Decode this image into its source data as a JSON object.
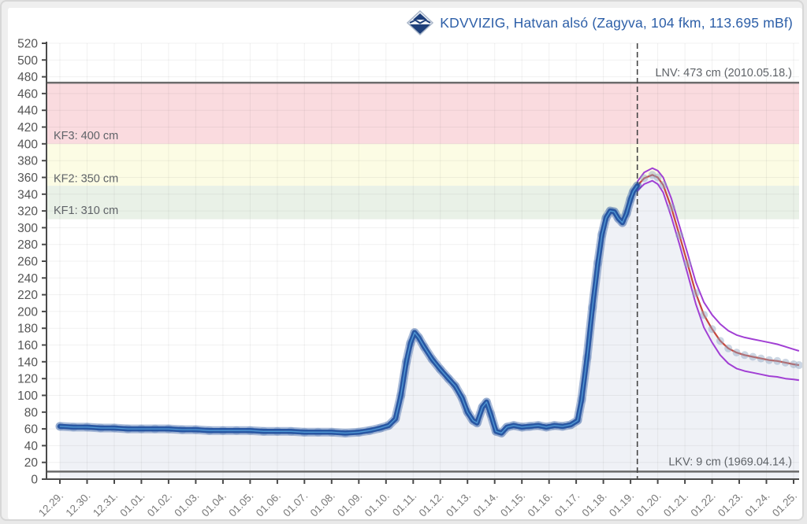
{
  "header": {
    "title": "KDVVIZIG, Hatvan alsó (Zagyva, 104 fkm, 113.695 mBf)",
    "logo_icon": "kdvvizig-diamond-logo"
  },
  "chart_data": {
    "type": "line",
    "title": "KDVVIZIG, Hatvan alsó (Zagyva, 104 fkm, 113.695 mBf)",
    "ylabel": "water level (cm)",
    "unit": "cm",
    "ylim": [
      0,
      520
    ],
    "y_ticks": [
      0,
      20,
      40,
      60,
      80,
      100,
      120,
      140,
      160,
      180,
      200,
      220,
      240,
      260,
      280,
      300,
      320,
      340,
      360,
      380,
      400,
      420,
      440,
      460,
      480,
      500,
      520
    ],
    "x_unit": "day_index_fractional",
    "x_labels": [
      "12.29.",
      "12.30.",
      "12.31.",
      "01.01.",
      "01.02.",
      "01.03.",
      "01.04.",
      "01.05.",
      "01.06.",
      "01.07.",
      "01.08.",
      "01.09.",
      "01.10.",
      "01.11.",
      "01.12.",
      "01.13.",
      "01.14.",
      "01.15.",
      "01.16.",
      "01.17.",
      "01.18.",
      "01.19.",
      "01.20.",
      "01.21.",
      "01.22.",
      "01.23.",
      "01.24.",
      "01.25."
    ],
    "grid": true,
    "legend_position": "none",
    "forecast_start_day": 21.25,
    "bands": [
      {
        "name": "KF3",
        "label": "KF3: 400 cm",
        "from": 400,
        "to": 473,
        "color": "#fadbdf",
        "label_value": 410
      },
      {
        "name": "KF2",
        "label": "KF2: 350 cm",
        "from": 350,
        "to": 400,
        "color": "#fcfce4",
        "label_value": 359
      },
      {
        "name": "KF1",
        "label": "KF1: 310 cm",
        "from": 310,
        "to": 350,
        "color": "#e9f1e7",
        "label_value": 321
      }
    ],
    "extremes": [
      {
        "name": "LNV",
        "label": "LNV: 473 cm (2010.05.18.)",
        "value": 473
      },
      {
        "name": "LKV",
        "label": "LKV: 9 cm (1969.04.14.)",
        "value": 9
      }
    ],
    "series": [
      {
        "name": "measured",
        "style": "thick-navy",
        "points": [
          [
            0,
            63
          ],
          [
            0.5,
            62
          ],
          [
            1,
            62
          ],
          [
            1.5,
            61
          ],
          [
            2,
            61
          ],
          [
            2.5,
            60
          ],
          [
            3,
            60
          ],
          [
            3.5,
            60
          ],
          [
            4,
            60
          ],
          [
            4.5,
            59
          ],
          [
            5,
            59
          ],
          [
            5.5,
            58
          ],
          [
            6,
            58
          ],
          [
            6.5,
            58
          ],
          [
            7,
            58
          ],
          [
            7.5,
            57
          ],
          [
            8,
            57
          ],
          [
            8.5,
            57
          ],
          [
            9,
            56
          ],
          [
            9.5,
            56
          ],
          [
            10,
            56
          ],
          [
            10.5,
            55
          ],
          [
            11,
            56
          ],
          [
            11.4,
            58
          ],
          [
            11.8,
            61
          ],
          [
            12.1,
            64
          ],
          [
            12.35,
            72
          ],
          [
            12.55,
            100
          ],
          [
            12.75,
            140
          ],
          [
            12.9,
            162
          ],
          [
            13.05,
            175
          ],
          [
            13.2,
            169
          ],
          [
            13.4,
            158
          ],
          [
            13.7,
            143
          ],
          [
            14,
            131
          ],
          [
            14.3,
            120
          ],
          [
            14.55,
            111
          ],
          [
            14.8,
            97
          ],
          [
            15,
            80
          ],
          [
            15.2,
            70
          ],
          [
            15.35,
            67
          ],
          [
            15.55,
            86
          ],
          [
            15.7,
            92
          ],
          [
            15.85,
            78
          ],
          [
            16.05,
            57
          ],
          [
            16.25,
            55
          ],
          [
            16.45,
            62
          ],
          [
            16.7,
            64
          ],
          [
            17,
            62
          ],
          [
            17.3,
            63
          ],
          [
            17.6,
            64
          ],
          [
            17.9,
            62
          ],
          [
            18.2,
            64
          ],
          [
            18.5,
            63
          ],
          [
            18.8,
            65
          ],
          [
            19.05,
            70
          ],
          [
            19.2,
            95
          ],
          [
            19.4,
            145
          ],
          [
            19.6,
            205
          ],
          [
            19.8,
            258
          ],
          [
            19.95,
            292
          ],
          [
            20.1,
            312
          ],
          [
            20.25,
            320
          ],
          [
            20.4,
            319
          ],
          [
            20.55,
            311
          ],
          [
            20.7,
            306
          ],
          [
            20.85,
            317
          ],
          [
            21,
            334
          ],
          [
            21.1,
            343
          ],
          [
            21.25,
            350
          ]
        ]
      },
      {
        "name": "forecast-median",
        "style": "red-line",
        "points": [
          [
            21.25,
            350
          ],
          [
            21.5,
            359
          ],
          [
            21.8,
            363
          ],
          [
            22,
            360
          ],
          [
            22.2,
            351
          ],
          [
            22.5,
            324
          ],
          [
            22.8,
            291
          ],
          [
            23.1,
            257
          ],
          [
            23.4,
            222
          ],
          [
            23.7,
            196
          ],
          [
            24,
            179
          ],
          [
            24.3,
            165
          ],
          [
            24.6,
            156
          ],
          [
            24.9,
            151
          ],
          [
            25.2,
            148
          ],
          [
            25.5,
            146
          ],
          [
            25.8,
            144
          ],
          [
            26.1,
            142
          ],
          [
            26.4,
            141
          ],
          [
            26.7,
            139
          ],
          [
            27,
            137
          ],
          [
            27.2,
            136
          ]
        ]
      },
      {
        "name": "forecast-upper-bound",
        "style": "purple-line",
        "points": [
          [
            21.25,
            355
          ],
          [
            21.5,
            366
          ],
          [
            21.8,
            371
          ],
          [
            22,
            368
          ],
          [
            22.2,
            360
          ],
          [
            22.5,
            335
          ],
          [
            22.8,
            302
          ],
          [
            23.1,
            269
          ],
          [
            23.4,
            235
          ],
          [
            23.7,
            211
          ],
          [
            24,
            196
          ],
          [
            24.3,
            185
          ],
          [
            24.6,
            177
          ],
          [
            24.9,
            172
          ],
          [
            25.2,
            169
          ],
          [
            25.5,
            167
          ],
          [
            25.8,
            165
          ],
          [
            26.1,
            163
          ],
          [
            26.4,
            161
          ],
          [
            26.7,
            158
          ],
          [
            27,
            155
          ],
          [
            27.2,
            153
          ]
        ]
      },
      {
        "name": "forecast-lower-bound",
        "style": "purple-line",
        "points": [
          [
            21.25,
            344
          ],
          [
            21.5,
            352
          ],
          [
            21.8,
            356
          ],
          [
            22,
            352
          ],
          [
            22.2,
            342
          ],
          [
            22.5,
            313
          ],
          [
            22.8,
            280
          ],
          [
            23.1,
            245
          ],
          [
            23.4,
            209
          ],
          [
            23.7,
            181
          ],
          [
            24,
            163
          ],
          [
            24.3,
            148
          ],
          [
            24.6,
            138
          ],
          [
            24.9,
            132
          ],
          [
            25.2,
            129
          ],
          [
            25.5,
            127
          ],
          [
            25.8,
            125
          ],
          [
            26.1,
            123
          ],
          [
            26.4,
            122
          ],
          [
            26.7,
            120
          ],
          [
            27,
            119
          ],
          [
            27.2,
            118
          ]
        ]
      }
    ],
    "colors": {
      "title": "#2d5fa8",
      "measured": "#1f4f9e",
      "measured_halo": "rgba(31,79,156,0.38)",
      "measured_center": "#55a2dc",
      "forecast_median": "#c8473c",
      "forecast_bounds": "#a13fd4",
      "forecast_dot": "#8fa3c0",
      "area_fill": "#eff1f6",
      "extreme_line": "#6b6b6b",
      "now_line": "#444444",
      "axis": "#4a4a4a",
      "grid": "rgba(100,100,100,0.09)",
      "y_tick_label": "#555555",
      "x_tick_label": "#7a7a7a",
      "annotation": "#5f6368",
      "page_bg": "#efefef",
      "card_bg": "#ffffff"
    }
  }
}
